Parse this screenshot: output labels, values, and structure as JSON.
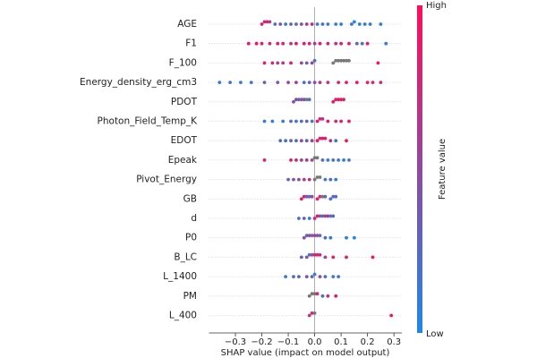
{
  "chart_data": {
    "type": "beeswarm",
    "xlabel": "SHAP value (impact on model output)",
    "colorbar_label": "Feature value",
    "colorbar_high_label": "High",
    "colorbar_low_label": "Low",
    "low_color": "#1e88e5",
    "high_color": "#ff0d57",
    "missing_color": "#777777",
    "xlim": [
      -0.4,
      0.33
    ],
    "xticks": [
      {
        "value": -0.3,
        "label": "−0.3"
      },
      {
        "value": -0.2,
        "label": "−0.2"
      },
      {
        "value": -0.1,
        "label": "−0.1"
      },
      {
        "value": 0,
        "label": "0.0"
      },
      0.1,
      0.2,
      0.3
    ],
    "series": [
      {
        "name": "AGE",
        "values": [
          -0.2,
          -0.19,
          -0.18,
          -0.17,
          -0.15,
          -0.13,
          -0.11,
          -0.09,
          -0.07,
          -0.05,
          -0.03,
          -0.01,
          0.01,
          0.03,
          0.05,
          0.08,
          0.1,
          0.14,
          0.15,
          0.17,
          0.19,
          0.21,
          0.25
        ],
        "feature_values": [
          0.8,
          0.7,
          0.9,
          0.6,
          0.2,
          0.4,
          0.1,
          0.3,
          0.2,
          0.5,
          0.6,
          0.8,
          0.1,
          0.2,
          0.1,
          0.05,
          0.1,
          0.1,
          0,
          0.05,
          0.1,
          0.15,
          0.05
        ]
      },
      {
        "name": "F1",
        "values": [
          -0.25,
          -0.22,
          -0.2,
          -0.17,
          -0.14,
          -0.12,
          -0.09,
          -0.07,
          -0.04,
          -0.02,
          0.0,
          0.02,
          0.05,
          0.08,
          0.1,
          0.13,
          0.16,
          0.18,
          0.2,
          0.27
        ],
        "feature_values": [
          0.9,
          1,
          0.9,
          0.8,
          0.95,
          0.85,
          0.7,
          1,
          0.9,
          0.8,
          0.6,
          0.9,
          0.8,
          0.7,
          0.9,
          0.85,
          0.3,
          0.2,
          0.9,
          0.1
        ]
      },
      {
        "name": "F_100",
        "values": [
          -0.19,
          -0.16,
          -0.14,
          -0.12,
          -0.09,
          -0.05,
          -0.03,
          -0.01,
          0.0,
          0.07,
          0.08,
          0.09,
          0.1,
          0.11,
          0.12,
          0.13,
          0.24
        ],
        "feature_values": [
          0.9,
          0.8,
          0.6,
          0.7,
          0.9,
          0.5,
          0.3,
          0.6,
          0.2,
          null,
          null,
          null,
          null,
          null,
          null,
          null,
          0.9
        ]
      },
      {
        "name": "Energy_density_erg_cm3",
        "values": [
          -0.36,
          -0.32,
          -0.28,
          -0.24,
          -0.19,
          -0.14,
          -0.1,
          -0.07,
          -0.04,
          -0.02,
          0.0,
          0.02,
          0.05,
          0.09,
          0.12,
          0.16,
          0.2,
          0.22,
          0.25
        ],
        "feature_values": [
          0.1,
          0.2,
          0.1,
          0.15,
          0.3,
          0.4,
          0.5,
          0.6,
          0.2,
          0.3,
          0.5,
          0.6,
          0.7,
          0.8,
          0.9,
          0.95,
          0.9,
          0.8,
          0.7
        ]
      },
      {
        "name": "PDOT",
        "values": [
          -0.08,
          -0.07,
          -0.06,
          -0.05,
          -0.04,
          -0.03,
          -0.02,
          0.07,
          0.08,
          0.09,
          0.1,
          0.11
        ],
        "feature_values": [
          0.4,
          0.5,
          0.3,
          0.4,
          0.5,
          null,
          0.2,
          0.9,
          0.85,
          0.95,
          0.9,
          0.8
        ]
      },
      {
        "name": "Photon_Field_Temp_K",
        "values": [
          -0.19,
          -0.16,
          -0.12,
          -0.09,
          -0.07,
          -0.05,
          -0.03,
          -0.01,
          0.01,
          0.02,
          0.03,
          0.05,
          0.08,
          0.1,
          0.13
        ],
        "feature_values": [
          0.1,
          0.1,
          0.1,
          0.2,
          0.15,
          0.2,
          0.3,
          0.1,
          0.9,
          0.8,
          0.7,
          0.9,
          0.8,
          0.85,
          0.9
        ]
      },
      {
        "name": "EDOT",
        "values": [
          -0.13,
          -0.11,
          -0.09,
          -0.07,
          -0.05,
          -0.03,
          -0.01,
          0.01,
          0.02,
          0.03,
          0.04,
          0.06,
          0.08,
          0.12
        ],
        "feature_values": [
          0.2,
          0.15,
          0.3,
          0.2,
          0.5,
          0.3,
          0.6,
          0.9,
          0.8,
          0.85,
          0.9,
          0.7,
          0.1,
          0.95
        ]
      },
      {
        "name": "Epeak",
        "values": [
          -0.19,
          -0.09,
          -0.07,
          -0.05,
          -0.03,
          -0.01,
          0.0,
          0.01,
          0.03,
          0.05,
          0.07,
          0.09,
          0.11,
          0.13
        ],
        "feature_values": [
          0.9,
          0.9,
          0.8,
          0.6,
          0.7,
          0.5,
          null,
          null,
          0.2,
          0.1,
          0.15,
          0.1,
          0.1,
          0.1
        ]
      },
      {
        "name": "Pivot_Energy",
        "values": [
          -0.1,
          -0.08,
          -0.06,
          -0.04,
          -0.02,
          0.0,
          0.01,
          0.02,
          0.04,
          0.06,
          0.08
        ],
        "feature_values": [
          0.3,
          0.4,
          0.5,
          0.6,
          0.7,
          null,
          null,
          null,
          0.1,
          0.2,
          0.1
        ]
      },
      {
        "name": "GB",
        "values": [
          -0.05,
          -0.04,
          -0.03,
          -0.02,
          -0.01,
          0.01,
          0.02,
          0.03,
          0.04,
          0.06,
          0.07,
          0.08
        ],
        "feature_values": [
          0.9,
          0.8,
          0.4,
          0.3,
          0.5,
          0.9,
          0.8,
          null,
          0.3,
          0.2,
          0.3,
          0.2
        ]
      },
      {
        "name": "d",
        "values": [
          -0.06,
          -0.04,
          -0.02,
          0.0,
          0.01,
          0.02,
          0.03,
          0.04,
          0.05,
          0.06,
          0.07
        ],
        "feature_values": [
          0.2,
          0.3,
          0.1,
          0.8,
          0.9,
          0.5,
          0.2,
          0.6,
          0.7,
          0.1,
          0.3
        ]
      },
      {
        "name": "P0",
        "values": [
          -0.04,
          -0.03,
          -0.02,
          -0.01,
          0.0,
          0.01,
          0.02,
          0.04,
          0.06,
          0.12,
          0.15
        ],
        "feature_values": [
          0.4,
          0.3,
          0.5,
          0.4,
          0.6,
          0.5,
          0.3,
          0.2,
          0.1,
          0.1,
          0.05
        ]
      },
      {
        "name": "B_LC",
        "values": [
          -0.05,
          -0.03,
          -0.02,
          -0.01,
          0.0,
          0.01,
          0.02,
          0.04,
          0.07,
          0.12,
          0.22
        ],
        "feature_values": [
          0.3,
          0.4,
          0.2,
          0.5,
          0.8,
          0.9,
          0.7,
          0.6,
          0.9,
          0.95,
          1
        ]
      },
      {
        "name": "L_1400",
        "values": [
          -0.11,
          -0.08,
          -0.06,
          -0.03,
          -0.01,
          0.0,
          0.02,
          0.04,
          0.07,
          0.09
        ],
        "feature_values": [
          0.1,
          0.2,
          0.3,
          0.4,
          0.3,
          0.1,
          0.5,
          0.2,
          0.1,
          0.15
        ]
      },
      {
        "name": "PM",
        "values": [
          -0.02,
          -0.01,
          0.0,
          0.01,
          0.03,
          0.05,
          0.08
        ],
        "feature_values": [
          null,
          null,
          null,
          0.8,
          0.2,
          0.7,
          0.9
        ]
      },
      {
        "name": "L_400",
        "values": [
          -0.02,
          -0.01,
          0.0,
          0.29
        ],
        "feature_values": [
          0.6,
          0.9,
          null,
          1
        ]
      }
    ]
  }
}
